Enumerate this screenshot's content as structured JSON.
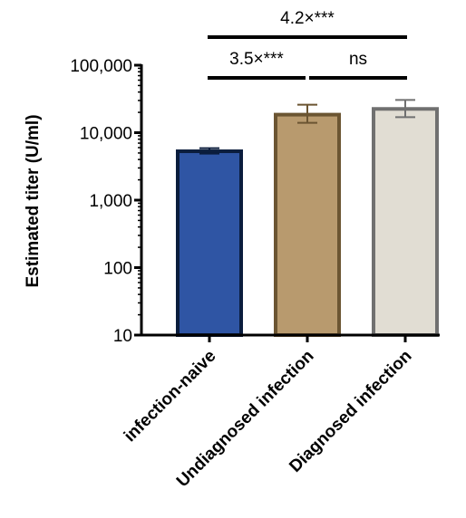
{
  "chart_data": {
    "type": "bar",
    "ylabel": "Estimated titer (U/ml)",
    "yscale": "log",
    "ylim": [
      10,
      100000
    ],
    "yticks": [
      {
        "value": 10,
        "label": "10"
      },
      {
        "value": 100,
        "label": "100"
      },
      {
        "value": 1000,
        "label": "1,000"
      },
      {
        "value": 10000,
        "label": "10,000"
      },
      {
        "value": 100000,
        "label": "100,000"
      }
    ],
    "grid": false,
    "categories": [
      "infection-naive",
      "Undiagnosed infection",
      "Diagnosed infection"
    ],
    "values": [
      5300,
      18500,
      22500
    ],
    "errors": [
      {
        "low": 4900,
        "high": 5900
      },
      {
        "low": 14000,
        "high": 26000
      },
      {
        "low": 17000,
        "high": 30500
      }
    ],
    "bar_fill": [
      "#2f55a4",
      "#b89a6e",
      "#e1ddd3"
    ],
    "bar_stroke": [
      "#0b1d3d",
      "#6b5532",
      "#707070"
    ],
    "comparisons": [
      {
        "from": 0,
        "to": 2,
        "label": "4.2×***"
      },
      {
        "from": 0,
        "to": 1,
        "label": "3.5×***"
      },
      {
        "from": 1,
        "to": 2,
        "label": "ns"
      }
    ]
  }
}
